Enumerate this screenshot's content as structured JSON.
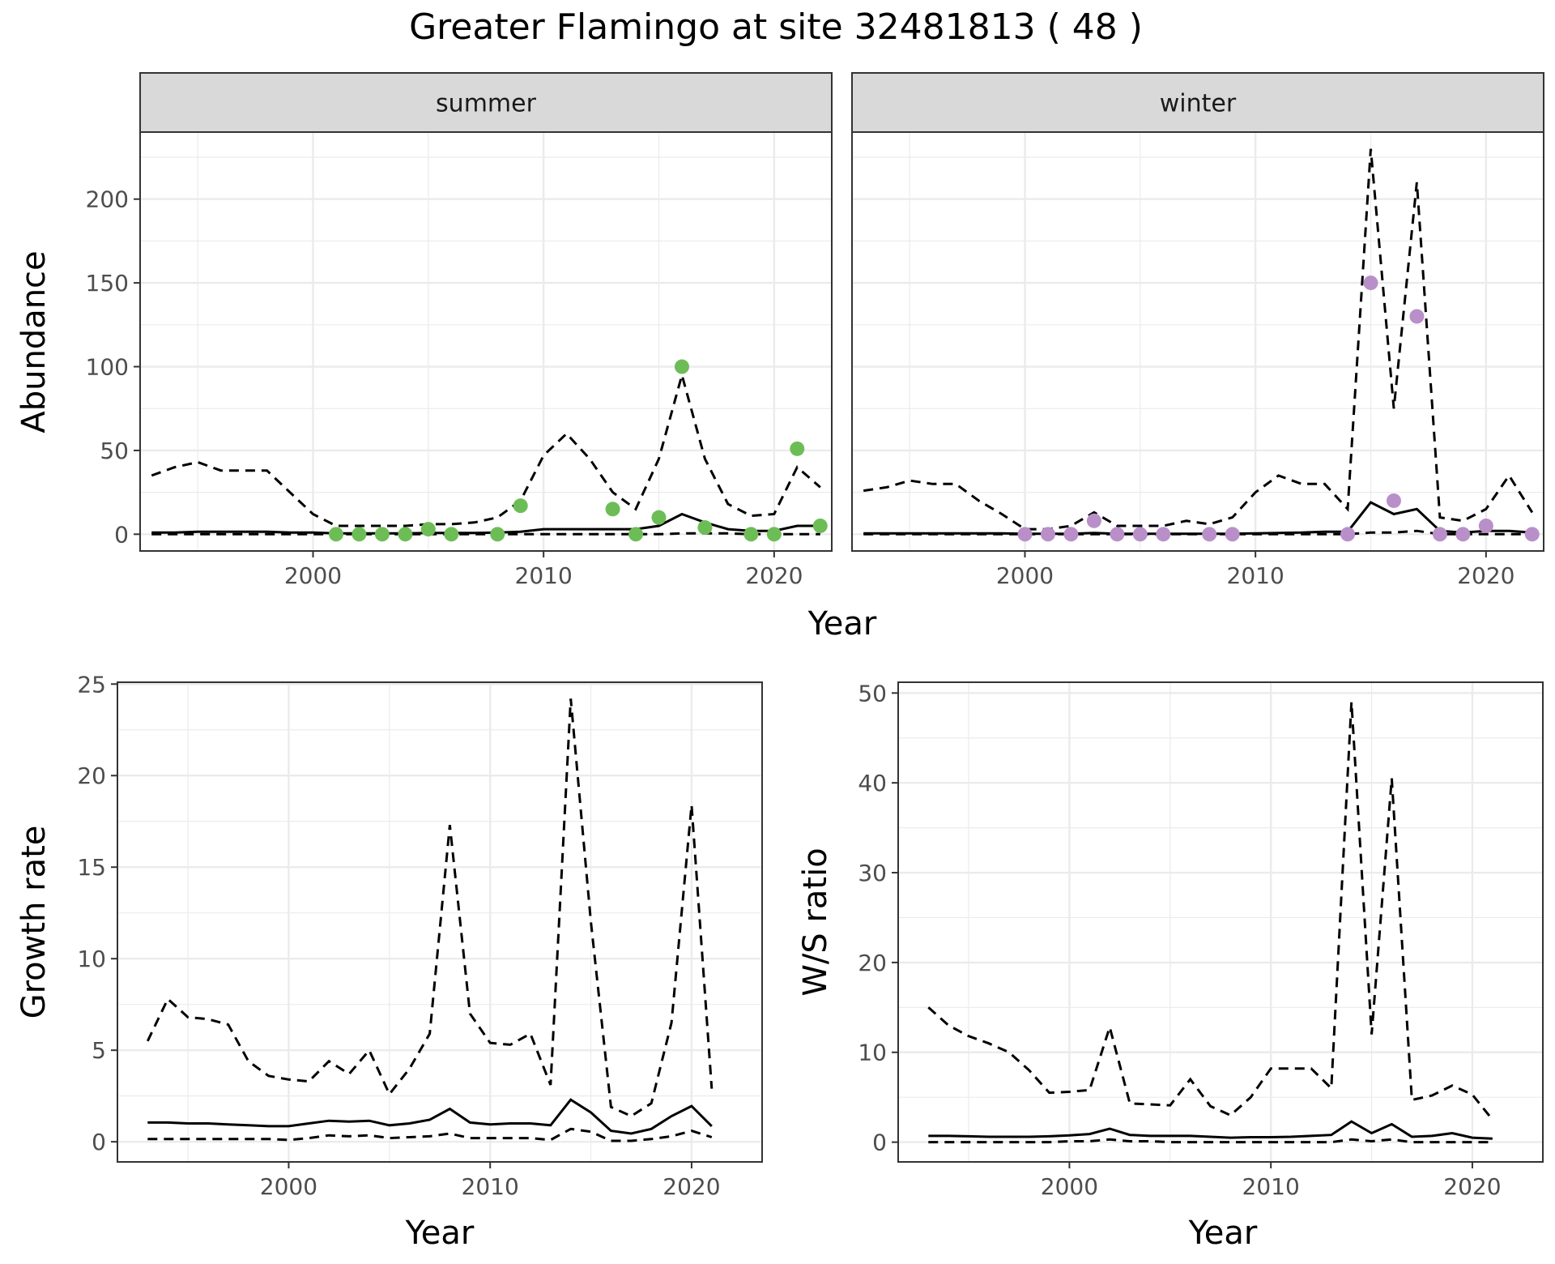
{
  "title": "Greater Flamingo at site 32481813 ( 48 )",
  "colors": {
    "summer_points": "#6dbd57",
    "winter_points": "#b98fc9",
    "lines": "#000000",
    "grid": "#ebebeb",
    "strip_bg": "#d9d9d9"
  },
  "chart_data": [
    {
      "type": "line",
      "panel": "summer",
      "strip_label": "summer",
      "xlabel": "Year",
      "ylabel": "Abundance",
      "xlim": [
        1992.5,
        2022.5
      ],
      "ylim": [
        -10,
        240
      ],
      "xticks": [
        2000,
        2010,
        2020
      ],
      "yticks": [
        0,
        50,
        100,
        150,
        200
      ],
      "grid": true,
      "lines": {
        "x": [
          1993,
          1994,
          1995,
          1996,
          1997,
          1998,
          1999,
          2000,
          2001,
          2002,
          2003,
          2004,
          2005,
          2006,
          2007,
          2008,
          2009,
          2010,
          2011,
          2012,
          2013,
          2014,
          2015,
          2016,
          2017,
          2018,
          2019,
          2020,
          2021,
          2022
        ],
        "mean": [
          1,
          1,
          1.5,
          1.5,
          1.5,
          1.5,
          1,
          1,
          0.5,
          0.5,
          0.5,
          0.5,
          0.8,
          0.8,
          0.8,
          1,
          1.5,
          3,
          3,
          3,
          3,
          3,
          5,
          12,
          7,
          3,
          2,
          2,
          5,
          5
        ],
        "upper": [
          35,
          40,
          43,
          38,
          38,
          38,
          25,
          12,
          5,
          5,
          5,
          5,
          6,
          6,
          7,
          10,
          20,
          47,
          60,
          45,
          25,
          15,
          45,
          95,
          45,
          18,
          11,
          12,
          40,
          28
        ],
        "lower": [
          0,
          0,
          0,
          0,
          0,
          0,
          0,
          0,
          0,
          0,
          0,
          0,
          0,
          0,
          0,
          0,
          0,
          0,
          0,
          0,
          0,
          0,
          0,
          0.5,
          0.5,
          0.5,
          0,
          0,
          0,
          0
        ]
      },
      "points": {
        "x": [
          2001,
          2002,
          2003,
          2004,
          2005,
          2006,
          2008,
          2009,
          2013,
          2014,
          2015,
          2016,
          2017,
          2019,
          2020,
          2021,
          2022
        ],
        "y": [
          0,
          0,
          0,
          0,
          3,
          0,
          0,
          17,
          15,
          0,
          10,
          100,
          4,
          0,
          0,
          51,
          5
        ]
      }
    },
    {
      "type": "line",
      "panel": "winter",
      "strip_label": "winter",
      "xlabel": "Year",
      "ylabel": "Abundance",
      "xlim": [
        1992.5,
        2022.5
      ],
      "ylim": [
        -10,
        240
      ],
      "xticks": [
        2000,
        2010,
        2020
      ],
      "yticks": [
        0,
        50,
        100,
        150,
        200
      ],
      "grid": true,
      "lines": {
        "x": [
          1993,
          1994,
          1995,
          1996,
          1997,
          1998,
          1999,
          2000,
          2001,
          2002,
          2003,
          2004,
          2005,
          2006,
          2007,
          2008,
          2009,
          2010,
          2011,
          2012,
          2013,
          2014,
          2015,
          2016,
          2017,
          2018,
          2019,
          2020,
          2021,
          2022
        ],
        "mean": [
          0.5,
          0.5,
          0.5,
          0.5,
          0.5,
          0.5,
          0.5,
          0.3,
          0.3,
          0.3,
          0.8,
          0.3,
          0.3,
          0.3,
          0.3,
          0.3,
          0.3,
          0.5,
          0.8,
          1,
          1.5,
          1.5,
          19,
          12,
          15,
          2,
          1,
          2,
          2,
          1
        ],
        "upper": [
          26,
          28,
          32,
          30,
          30,
          20,
          12,
          3,
          3,
          5,
          13,
          5,
          5,
          5,
          8,
          6,
          10,
          25,
          35,
          30,
          30,
          15,
          230,
          75,
          210,
          10,
          8,
          15,
          35,
          13
        ],
        "lower": [
          0,
          0,
          0,
          0,
          0,
          0,
          0,
          0,
          0,
          0,
          0,
          0,
          0,
          0,
          0,
          0,
          0,
          0,
          0,
          0,
          0,
          0,
          1,
          1,
          2,
          0,
          0,
          0,
          0,
          0
        ]
      },
      "points": {
        "x": [
          2000,
          2001,
          2002,
          2003,
          2004,
          2005,
          2006,
          2008,
          2009,
          2014,
          2015,
          2016,
          2017,
          2018,
          2019,
          2020,
          2022
        ],
        "y": [
          0,
          0,
          0,
          8,
          0,
          0,
          0,
          0,
          0,
          0,
          150,
          20,
          130,
          0,
          0,
          5,
          0
        ]
      }
    },
    {
      "type": "line",
      "panel": "growth",
      "xlabel": "Year",
      "ylabel": "Growth rate",
      "xlim": [
        1991.5,
        2023.5
      ],
      "ylim": [
        -1.1,
        25.1
      ],
      "xticks": [
        2000,
        2010,
        2020
      ],
      "yticks": [
        0,
        5,
        10,
        15,
        20,
        25
      ],
      "grid": true,
      "lines": {
        "x": [
          1993,
          1994,
          1995,
          1996,
          1997,
          1998,
          1999,
          2000,
          2001,
          2002,
          2003,
          2004,
          2005,
          2006,
          2007,
          2008,
          2009,
          2010,
          2011,
          2012,
          2013,
          2014,
          2015,
          2016,
          2017,
          2018,
          2019,
          2020,
          2021
        ],
        "mean": [
          1.05,
          1.05,
          1,
          1,
          0.95,
          0.9,
          0.85,
          0.85,
          1,
          1.15,
          1.1,
          1.15,
          0.9,
          1,
          1.2,
          1.8,
          1.05,
          0.95,
          1,
          1,
          0.9,
          2.3,
          1.6,
          0.6,
          0.45,
          0.7,
          1.4,
          1.95,
          0.85
        ],
        "upper": [
          5.5,
          7.8,
          6.8,
          6.7,
          6.4,
          4.4,
          3.6,
          3.4,
          3.3,
          4.4,
          3.7,
          5,
          2.6,
          4,
          5.9,
          17.3,
          7,
          5.4,
          5.3,
          5.9,
          3.1,
          24.2,
          12,
          1.9,
          1.4,
          2.1,
          6.5,
          18.4,
          2.9
        ],
        "lower": [
          0.15,
          0.15,
          0.15,
          0.15,
          0.15,
          0.15,
          0.15,
          0.1,
          0.2,
          0.35,
          0.3,
          0.35,
          0.2,
          0.25,
          0.3,
          0.45,
          0.2,
          0.2,
          0.2,
          0.2,
          0.1,
          0.7,
          0.55,
          0.05,
          0.05,
          0.15,
          0.3,
          0.6,
          0.25
        ]
      }
    },
    {
      "type": "line",
      "panel": "ratio",
      "xlabel": "Year",
      "ylabel": "W/S ratio",
      "xlim": [
        1991.5,
        2023.5
      ],
      "ylim": [
        -2.2,
        51.2
      ],
      "xticks": [
        2000,
        2010,
        2020
      ],
      "yticks": [
        0,
        10,
        20,
        30,
        40,
        50
      ],
      "grid": true,
      "lines": {
        "x": [
          1993,
          1994,
          1995,
          1996,
          1997,
          1998,
          1999,
          2000,
          2001,
          2002,
          2003,
          2004,
          2005,
          2006,
          2007,
          2008,
          2009,
          2010,
          2011,
          2012,
          2013,
          2014,
          2015,
          2016,
          2017,
          2018,
          2019,
          2020,
          2021
        ],
        "mean": [
          0.7,
          0.7,
          0.65,
          0.6,
          0.6,
          0.6,
          0.65,
          0.75,
          0.9,
          1.5,
          0.8,
          0.7,
          0.7,
          0.7,
          0.6,
          0.5,
          0.55,
          0.55,
          0.6,
          0.7,
          0.8,
          2.3,
          1,
          2,
          0.6,
          0.7,
          1,
          0.5,
          0.4
        ],
        "upper": [
          15,
          13,
          11.8,
          11,
          10,
          8,
          5.5,
          5.6,
          5.8,
          12.8,
          4.3,
          4.2,
          4.1,
          7,
          4,
          3,
          5,
          8.2,
          8.2,
          8.2,
          6,
          49,
          12,
          40.5,
          4.7,
          5.2,
          6.3,
          5.3,
          2.5
        ],
        "lower": [
          0,
          0,
          0,
          0,
          0,
          0,
          0,
          0.1,
          0.1,
          0.3,
          0.1,
          0.1,
          0,
          0,
          0,
          0,
          0,
          0,
          0,
          0,
          0,
          0.3,
          0.1,
          0.3,
          0,
          0,
          0,
          0,
          0
        ]
      }
    }
  ]
}
